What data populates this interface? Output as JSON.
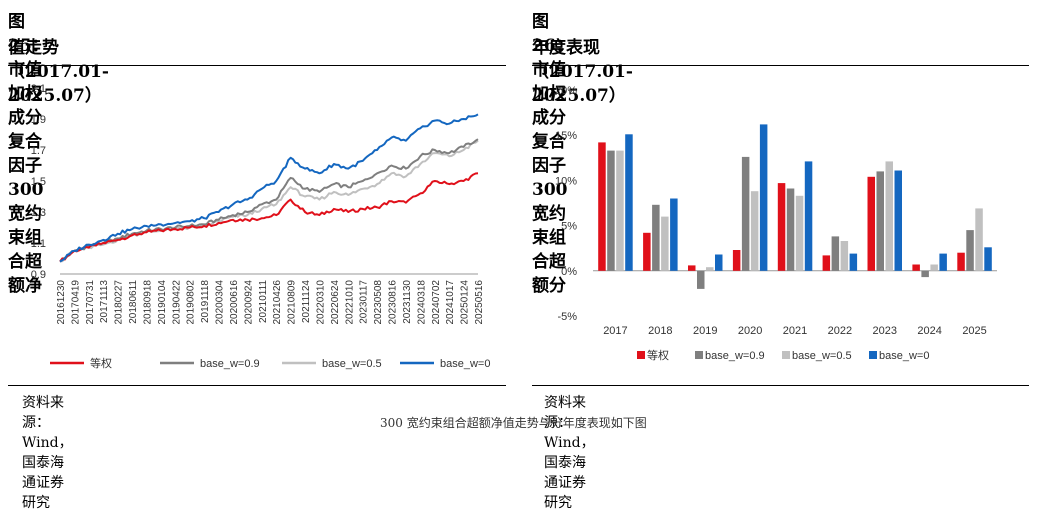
{
  "left": {
    "title_line1": "图25：市值加权成分复合因子 300 宽约束组合超额净",
    "title_line2": "值走势（2017.01-2025.07）",
    "source": "资料来源：Wind，国泰海通证券研究"
  },
  "right": {
    "title_line1": "图26：市值加权成分复合因子 300 宽约束组合超额分",
    "title_line2": "年度表现（2017.01-2025.07）",
    "source": "资料来源：Wind，国泰海通证券研究"
  },
  "footer_text": "300 宽约束组合超额净值走势与分年度表现如下图",
  "colors": {
    "equal": "#e0101a",
    "w09": "#7f7f7f",
    "w05": "#c0c0c0",
    "w0": "#1467c0"
  },
  "chart_data": [
    {
      "type": "line",
      "title": "",
      "ylim": [
        0.9,
        2.1
      ],
      "yticks": [
        "0.9",
        "1.1",
        "1.3",
        "1.5",
        "1.7",
        "1.9",
        "2.1"
      ],
      "x": [
        "20161230",
        "20170419",
        "20170731",
        "20171113",
        "20180227",
        "20180611",
        "20180918",
        "20190104",
        "20190422",
        "20190802",
        "20191118",
        "20200304",
        "20200616",
        "20200924",
        "20210111",
        "20210426",
        "20210809",
        "20211124",
        "20220310",
        "20220624",
        "20221010",
        "20230117",
        "20230508",
        "20230816",
        "20231130",
        "20240318",
        "20240702",
        "20241017",
        "20250124",
        "20250516"
      ],
      "series": [
        {
          "name": "等权",
          "color_key": "equal",
          "values": [
            0.98,
            1.05,
            1.07,
            1.1,
            1.12,
            1.15,
            1.17,
            1.18,
            1.19,
            1.2,
            1.21,
            1.23,
            1.25,
            1.25,
            1.26,
            1.28,
            1.38,
            1.3,
            1.28,
            1.32,
            1.3,
            1.32,
            1.33,
            1.37,
            1.36,
            1.42,
            1.5,
            1.48,
            1.5,
            1.55
          ]
        },
        {
          "name": "base_w=0.9",
          "color_key": "w09",
          "values": [
            0.98,
            1.05,
            1.08,
            1.1,
            1.13,
            1.16,
            1.18,
            1.19,
            1.2,
            1.21,
            1.22,
            1.25,
            1.28,
            1.3,
            1.35,
            1.38,
            1.52,
            1.45,
            1.43,
            1.48,
            1.46,
            1.5,
            1.55,
            1.6,
            1.58,
            1.66,
            1.7,
            1.68,
            1.72,
            1.77
          ]
        },
        {
          "name": "base_w=0.5",
          "color_key": "w05",
          "values": [
            0.98,
            1.05,
            1.07,
            1.09,
            1.12,
            1.15,
            1.17,
            1.18,
            1.19,
            1.2,
            1.21,
            1.24,
            1.27,
            1.28,
            1.32,
            1.35,
            1.46,
            1.4,
            1.38,
            1.43,
            1.41,
            1.45,
            1.48,
            1.55,
            1.53,
            1.61,
            1.68,
            1.66,
            1.7,
            1.76
          ]
        },
        {
          "name": "base_w=0",
          "color_key": "w0",
          "values": [
            0.98,
            1.05,
            1.09,
            1.12,
            1.16,
            1.19,
            1.21,
            1.22,
            1.23,
            1.24,
            1.26,
            1.3,
            1.35,
            1.38,
            1.45,
            1.5,
            1.65,
            1.58,
            1.55,
            1.61,
            1.58,
            1.63,
            1.7,
            1.78,
            1.76,
            1.84,
            1.89,
            1.87,
            1.9,
            1.93
          ]
        }
      ],
      "legend": [
        "等权",
        "base_w=0.9",
        "base_w=0.5",
        "base_w=0"
      ],
      "legend_position": "bottom"
    },
    {
      "type": "bar",
      "title": "",
      "ylim": [
        -5,
        20
      ],
      "yticks": [
        "-5%",
        "0%",
        "5%",
        "10%",
        "15%",
        "20%"
      ],
      "categories": [
        "2017",
        "2018",
        "2019",
        "2020",
        "2021",
        "2022",
        "2023",
        "2024",
        "2025"
      ],
      "series": [
        {
          "name": "等权",
          "color_key": "equal",
          "values": [
            14.2,
            4.2,
            0.6,
            2.3,
            9.7,
            1.7,
            10.4,
            0.7,
            2.0
          ]
        },
        {
          "name": "base_w=0.9",
          "color_key": "w09",
          "values": [
            13.3,
            7.3,
            -2.0,
            12.6,
            9.1,
            3.8,
            11.0,
            -0.7,
            4.5
          ]
        },
        {
          "name": "base_w=0.5",
          "color_key": "w05",
          "values": [
            13.3,
            6.0,
            0.4,
            8.8,
            8.3,
            3.3,
            12.1,
            0.7,
            6.9
          ]
        },
        {
          "name": "base_w=0",
          "color_key": "w0",
          "values": [
            15.1,
            8.0,
            1.8,
            16.2,
            12.1,
            1.9,
            11.1,
            1.9,
            2.6
          ]
        }
      ],
      "legend": [
        "等权",
        "base_w=0.9",
        "base_w=0.5",
        "base_w=0"
      ],
      "legend_position": "bottom"
    }
  ]
}
